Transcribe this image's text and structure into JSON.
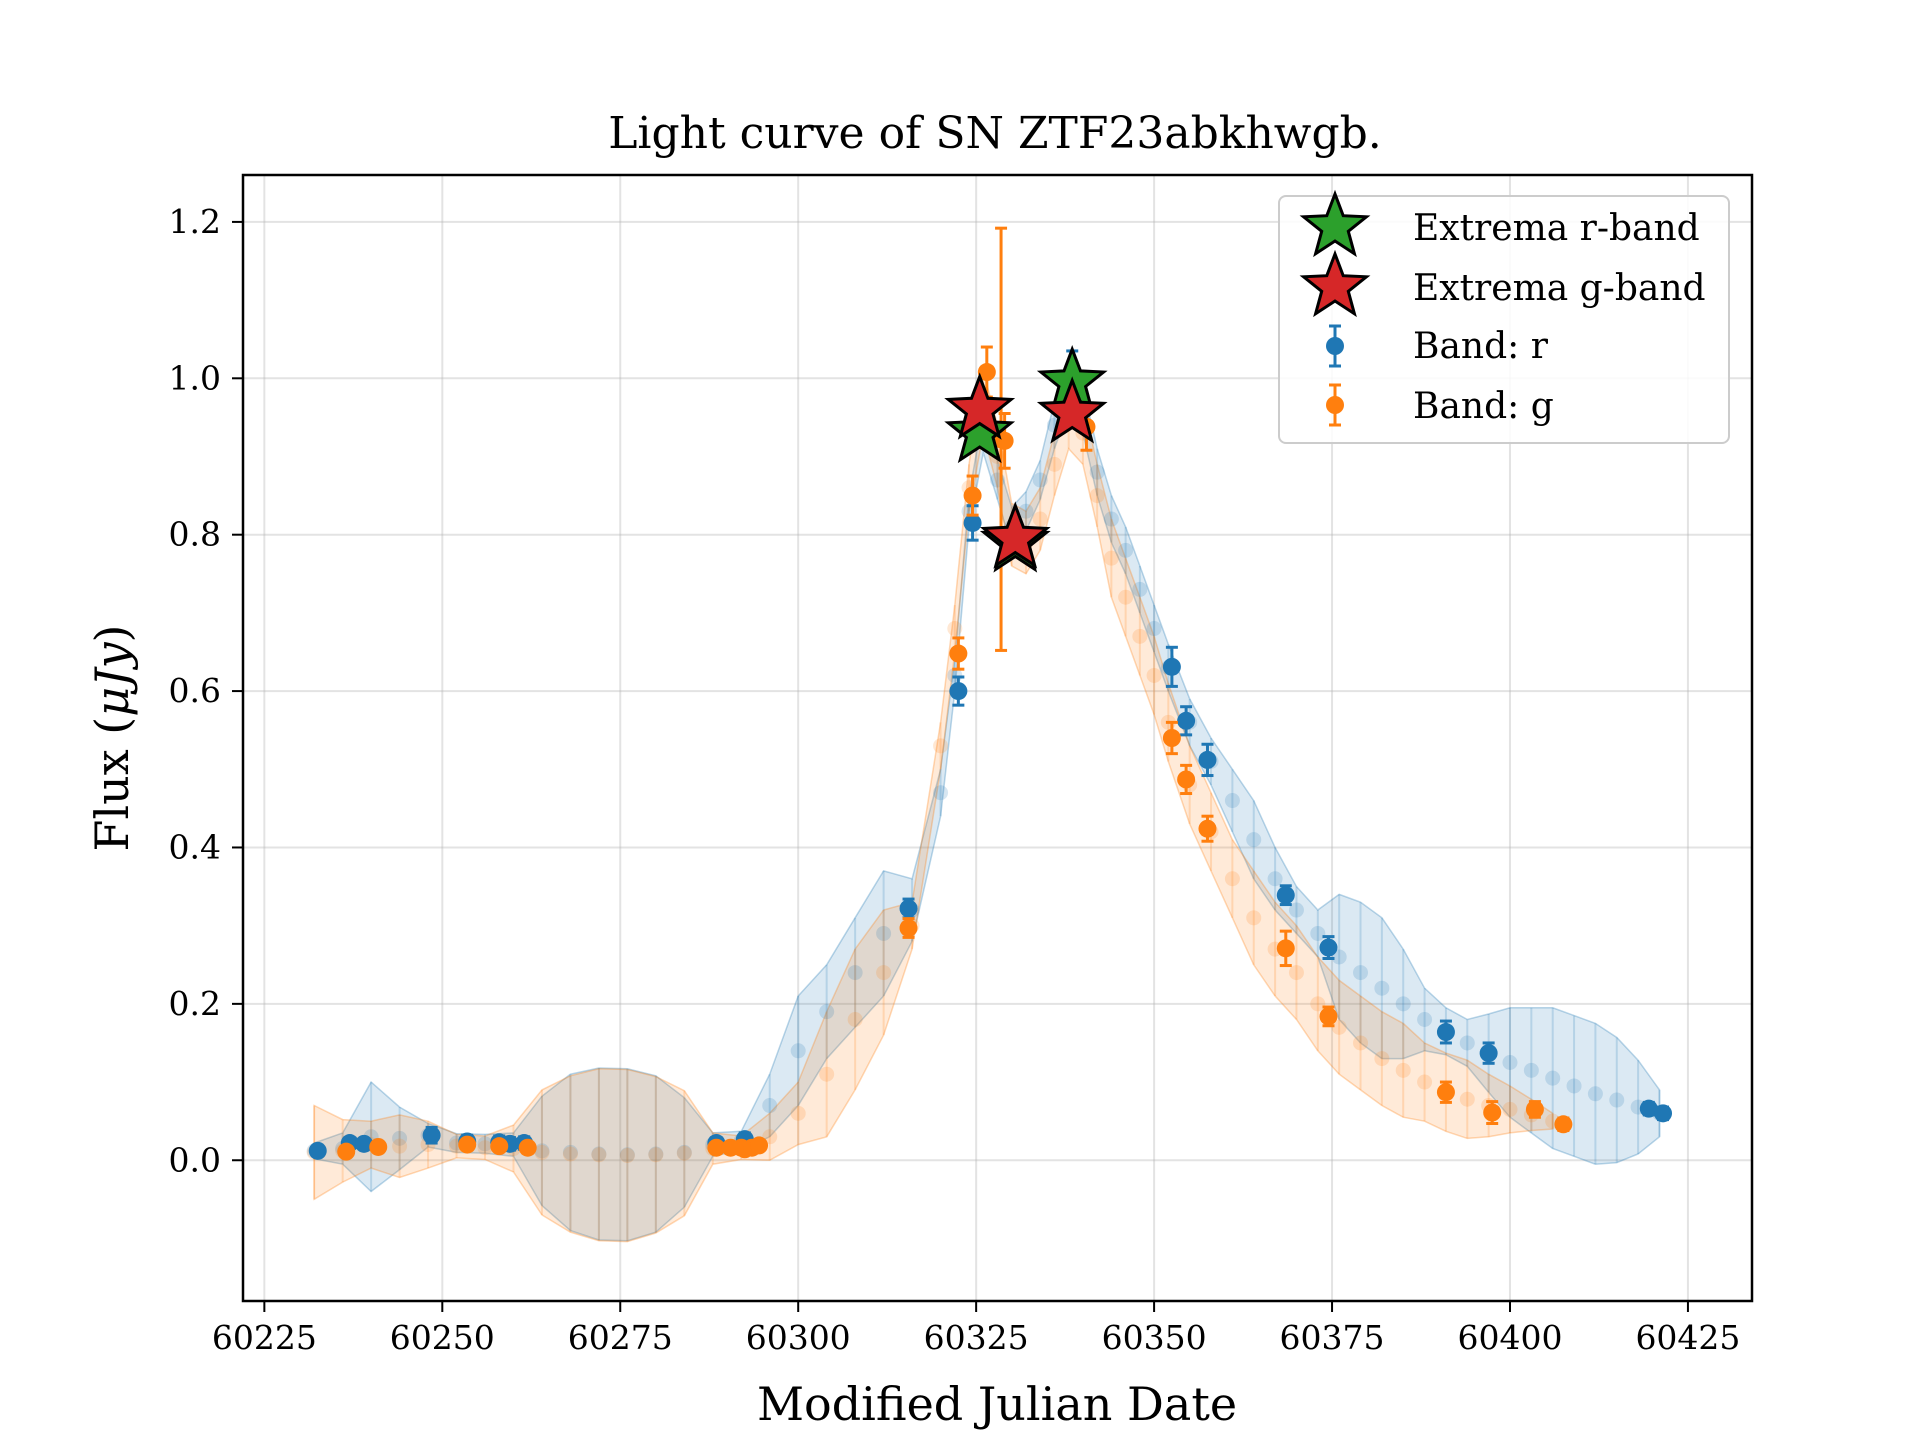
{
  "chart_data": {
    "type": "scatter",
    "title": "Light curve of SN ZTF23abkhwgb.",
    "xlabel": "Modified Julian Date",
    "ylabel_main": "Flux (",
    "ylabel_unit": "μJy",
    "ylabel_close": ")",
    "xlim": [
      60222,
      60434
    ],
    "ylim": [
      -0.18,
      1.26
    ],
    "xticks": [
      60225,
      60250,
      60275,
      60300,
      60325,
      60350,
      60375,
      60400,
      60425
    ],
    "yticks": [
      0.0,
      0.2,
      0.4,
      0.6,
      0.8,
      1.0,
      1.2
    ],
    "xtick_labels": [
      "60225",
      "60250",
      "60275",
      "60300",
      "60325",
      "60350",
      "60375",
      "60400",
      "60425"
    ],
    "ytick_labels": [
      "0.0",
      "0.2",
      "0.4",
      "0.6",
      "0.8",
      "1.0",
      "1.2"
    ],
    "grid": true,
    "legend_position": "top-right",
    "legend": {
      "extrema_r": "Extrema r-band",
      "extrema_g": "Extrema g-band",
      "band_r": "Band: r",
      "band_g": "Band: g"
    },
    "colors": {
      "r": "#1f77b4",
      "g": "#ff7f0e",
      "extrema_r": "#2ca02c",
      "extrema_g": "#d62728"
    },
    "series": [
      {
        "name": "Band: r",
        "x": [
          60232.5,
          60237,
          60239,
          60248.5,
          60253.5,
          60258,
          60259.5,
          60261.5,
          60288.5,
          60292.5,
          60315.5,
          60322.5,
          60324.5,
          60338.5,
          60352.5,
          60354.5,
          60357.5,
          60368.5,
          60374.5,
          60391,
          60397,
          60419.5,
          60421.5
        ],
        "y": [
          0.012,
          0.022,
          0.021,
          0.032,
          0.024,
          0.023,
          0.021,
          0.022,
          0.022,
          0.027,
          0.322,
          0.6,
          0.815,
          1.0,
          0.631,
          0.562,
          0.512,
          0.339,
          0.272,
          0.164,
          0.137,
          0.066,
          0.06
        ],
        "err": [
          0.006,
          0.005,
          0.005,
          0.01,
          0.008,
          0.008,
          0.008,
          0.008,
          0.007,
          0.008,
          0.012,
          0.018,
          0.022,
          0.035,
          0.025,
          0.018,
          0.02,
          0.012,
          0.014,
          0.014,
          0.013,
          0.008,
          0.008
        ]
      },
      {
        "name": "Band: g",
        "x": [
          60236.5,
          60241,
          60253.5,
          60258,
          60262,
          60288.5,
          60290.5,
          60292,
          60292.5,
          60293.5,
          60294.5,
          60315.5,
          60322.5,
          60324.5,
          60326.5,
          60328.5,
          60329,
          60340.5,
          60352.5,
          60354.5,
          60357.5,
          60368.5,
          60374.5,
          60391,
          60397.5,
          60403.5,
          60407.5
        ],
        "y": [
          0.011,
          0.017,
          0.02,
          0.018,
          0.016,
          0.016,
          0.016,
          0.016,
          0.014,
          0.016,
          0.019,
          0.297,
          0.648,
          0.85,
          1.008,
          0.922,
          0.92,
          0.938,
          0.54,
          0.487,
          0.424,
          0.271,
          0.184,
          0.087,
          0.061,
          0.065,
          0.046
        ],
        "err": [
          0.005,
          0.005,
          0.006,
          0.006,
          0.006,
          0.005,
          0.005,
          0.005,
          0.005,
          0.005,
          0.006,
          0.012,
          0.02,
          0.025,
          0.032,
          0.27,
          0.035,
          0.03,
          0.02,
          0.018,
          0.016,
          0.022,
          0.012,
          0.013,
          0.014,
          0.01,
          0.008
        ]
      }
    ],
    "model_r": {
      "x": [
        60232,
        60236,
        60240,
        60244,
        60248,
        60252,
        60256,
        60260,
        60264,
        60268,
        60272,
        60276,
        60280,
        60284,
        60288,
        60292,
        60296,
        60300,
        60304,
        60308,
        60312,
        60316,
        60320,
        60322,
        60324,
        60326,
        60328,
        60330,
        60332,
        60334,
        60336,
        60338,
        60340,
        60342,
        60344,
        60346,
        60348,
        60350,
        60352,
        60355,
        60358,
        60361,
        60364,
        60367,
        60370,
        60373,
        60376,
        60379,
        60382,
        60385,
        60388,
        60391,
        60394,
        60397,
        60400,
        60403,
        60406,
        60409,
        60412,
        60415,
        60418,
        60421
      ],
      "y": [
        0.012,
        0.015,
        0.03,
        0.028,
        0.032,
        0.022,
        0.021,
        0.02,
        0.012,
        0.01,
        0.008,
        0.007,
        0.008,
        0.01,
        0.02,
        0.025,
        0.07,
        0.14,
        0.19,
        0.24,
        0.29,
        0.32,
        0.47,
        0.62,
        0.83,
        0.93,
        0.87,
        0.81,
        0.83,
        0.87,
        0.94,
        0.99,
        0.96,
        0.88,
        0.82,
        0.78,
        0.73,
        0.68,
        0.63,
        0.56,
        0.51,
        0.46,
        0.41,
        0.36,
        0.32,
        0.29,
        0.26,
        0.24,
        0.22,
        0.2,
        0.18,
        0.165,
        0.15,
        0.137,
        0.125,
        0.115,
        0.105,
        0.095,
        0.085,
        0.077,
        0.068,
        0.06
      ],
      "err": [
        0.01,
        0.02,
        0.07,
        0.04,
        0.015,
        0.012,
        0.012,
        0.015,
        0.07,
        0.1,
        0.11,
        0.11,
        0.1,
        0.07,
        0.015,
        0.012,
        0.04,
        0.07,
        0.06,
        0.07,
        0.08,
        0.04,
        0.03,
        0.02,
        0.02,
        0.025,
        0.025,
        0.025,
        0.025,
        0.025,
        0.03,
        0.03,
        0.03,
        0.03,
        0.03,
        0.03,
        0.03,
        0.03,
        0.03,
        0.03,
        0.03,
        0.04,
        0.05,
        0.04,
        0.03,
        0.03,
        0.08,
        0.09,
        0.09,
        0.07,
        0.04,
        0.03,
        0.03,
        0.05,
        0.07,
        0.08,
        0.09,
        0.09,
        0.09,
        0.08,
        0.06,
        0.03
      ]
    },
    "model_g": {
      "x": [
        60232,
        60236,
        60240,
        60244,
        60248,
        60252,
        60256,
        60260,
        60264,
        60268,
        60272,
        60276,
        60280,
        60284,
        60288,
        60292,
        60296,
        60300,
        60304,
        60308,
        60312,
        60316,
        60320,
        60322,
        60324,
        60326,
        60328,
        60330,
        60332,
        60334,
        60336,
        60338,
        60340,
        60342,
        60344,
        60346,
        60348,
        60350,
        60352,
        60355,
        60358,
        60361,
        60364,
        60367,
        60370,
        60373,
        60376,
        60379,
        60382,
        60385,
        60388,
        60391,
        60394,
        60397,
        60400,
        60403,
        60406
      ],
      "y": [
        0.01,
        0.012,
        0.02,
        0.018,
        0.02,
        0.018,
        0.016,
        0.015,
        0.01,
        0.008,
        0.007,
        0.006,
        0.007,
        0.009,
        0.015,
        0.016,
        0.03,
        0.06,
        0.11,
        0.18,
        0.24,
        0.3,
        0.53,
        0.68,
        0.86,
        0.97,
        0.9,
        0.8,
        0.79,
        0.82,
        0.89,
        0.95,
        0.93,
        0.85,
        0.77,
        0.72,
        0.67,
        0.62,
        0.56,
        0.48,
        0.42,
        0.36,
        0.31,
        0.27,
        0.24,
        0.2,
        0.17,
        0.15,
        0.13,
        0.115,
        0.1,
        0.087,
        0.078,
        0.07,
        0.065,
        0.058,
        0.05
      ],
      "err": [
        0.06,
        0.04,
        0.03,
        0.04,
        0.03,
        0.015,
        0.015,
        0.03,
        0.08,
        0.1,
        0.11,
        0.11,
        0.1,
        0.08,
        0.02,
        0.015,
        0.03,
        0.04,
        0.08,
        0.09,
        0.08,
        0.03,
        0.03,
        0.03,
        0.03,
        0.04,
        0.04,
        0.04,
        0.04,
        0.04,
        0.04,
        0.04,
        0.04,
        0.04,
        0.05,
        0.05,
        0.05,
        0.05,
        0.05,
        0.05,
        0.05,
        0.05,
        0.06,
        0.06,
        0.06,
        0.06,
        0.06,
        0.06,
        0.06,
        0.06,
        0.05,
        0.05,
        0.05,
        0.04,
        0.03,
        0.02,
        0.01
      ]
    },
    "extrema": [
      {
        "band": "r",
        "x": 60325.5,
        "y": 0.93
      },
      {
        "band": "r",
        "x": 60330.5,
        "y": 0.79
      },
      {
        "band": "r",
        "x": 60338.5,
        "y": 0.995
      },
      {
        "band": "g",
        "x": 60325.5,
        "y": 0.96
      },
      {
        "band": "g",
        "x": 60330.5,
        "y": 0.795
      },
      {
        "band": "g",
        "x": 60338.5,
        "y": 0.955
      }
    ]
  }
}
